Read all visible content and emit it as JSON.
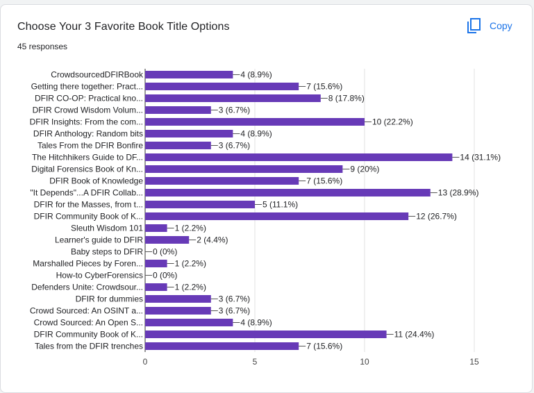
{
  "header": {
    "title": "Choose Your 3 Favorite Book Title Options",
    "responses": "45 responses",
    "copy_label": "Copy"
  },
  "colors": {
    "bar": "#673ab7",
    "accent": "#1a73e8",
    "text": "#202124",
    "grid": "#e0e0e0"
  },
  "icons": {
    "copy": "copy-icon"
  },
  "chart_data": {
    "type": "bar",
    "orientation": "horizontal",
    "title": "Choose Your 3 Favorite Book Title Options",
    "categories": [
      "CrowdsourcedDFIRBook",
      "Getting there together: Pract...",
      "DFIR CO-OP: Practical kno...",
      "DFIR Crowd Wisdom Volum...",
      "DFIR Insights: From the com...",
      "DFIR Anthology: Random bits",
      "Tales From the DFIR Bonfire",
      "The Hitchhikers Guide to DF...",
      "Digital Forensics Book of Kn...",
      "DFIR Book of Knowledge",
      "\"It Depends\"...A DFIR Collab...",
      "DFIR for the Masses, from t...",
      "DFIR Community Book of K...",
      "Sleuth Wisdom 101",
      "Learner's guide to DFIR",
      "Baby steps to DFIR",
      "Marshalled Pieces by Foren...",
      "How-to CyberForensics",
      "Defenders Unite: Crowdsour...",
      "DFIR for dummies",
      "Crowd Sourced: An OSINT a...",
      "Crowd Sourced: An Open S...",
      "DFIR Community Book of K...",
      "Tales from the DFIR trenches"
    ],
    "values": [
      4,
      7,
      8,
      3,
      10,
      4,
      3,
      14,
      9,
      7,
      13,
      5,
      12,
      1,
      2,
      0,
      1,
      0,
      1,
      3,
      3,
      4,
      11,
      7
    ],
    "data_labels": [
      "4 (8.9%)",
      "7 (15.6%)",
      "8 (17.8%)",
      "3 (6.7%)",
      "10 (22.2%)",
      "4 (8.9%)",
      "3 (6.7%)",
      "14 (31.1%)",
      "9 (20%)",
      "7 (15.6%)",
      "13 (28.9%)",
      "5 (11.1%)",
      "12 (26.7%)",
      "1 (2.2%)",
      "2 (4.4%)",
      "0 (0%)",
      "1 (2.2%)",
      "0 (0%)",
      "1 (2.2%)",
      "3 (6.7%)",
      "3 (6.7%)",
      "4 (8.9%)",
      "11 (24.4%)",
      "7 (15.6%)"
    ],
    "x_ticks": [
      "0",
      "5",
      "10",
      "15"
    ],
    "xlim": [
      0,
      15
    ],
    "grid": true,
    "legend": "none"
  }
}
